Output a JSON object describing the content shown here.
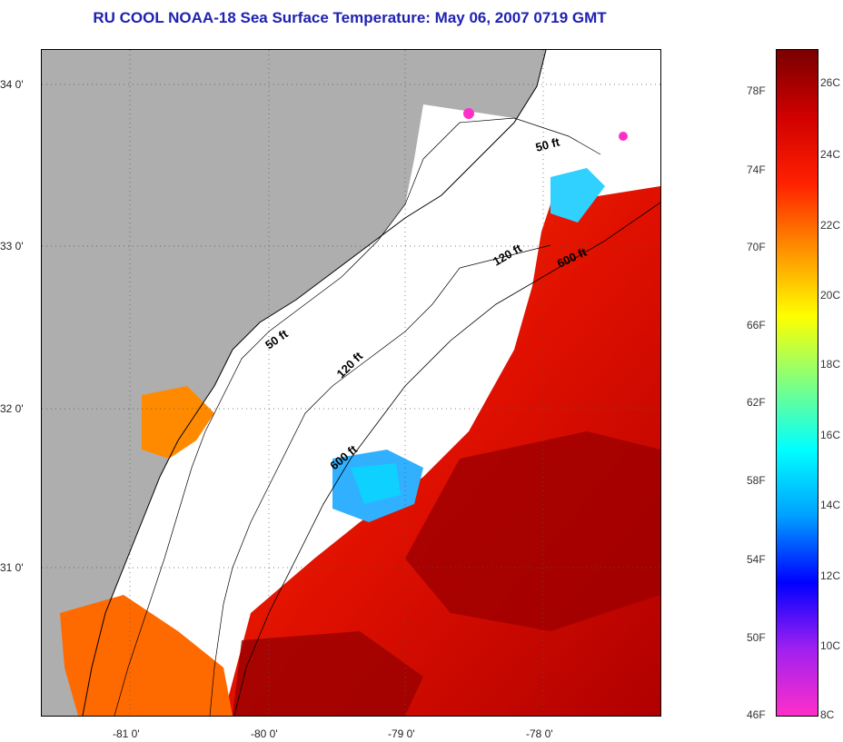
{
  "title": "RU COOL  NOAA-18  Sea Surface Temperature:  May 06, 2007 0719 GMT",
  "map": {
    "lat_labels": [
      "34 0'",
      "33 0'",
      "32 0'",
      "31 0'"
    ],
    "lon_labels": [
      "-81 0'",
      "-80 0'",
      "-79 0'",
      "-78 0'"
    ],
    "contour_labels": [
      "50 ft",
      "50 ft",
      "120 ft",
      "120 ft",
      "600 ft",
      "600 ft"
    ],
    "colors": {
      "land": "#aeaeae",
      "cloud": "#ffffff",
      "coast": "#000000"
    }
  },
  "colorbar": {
    "fahrenheit": [
      "78F",
      "74F",
      "70F",
      "66F",
      "62F",
      "58F",
      "54F",
      "50F",
      "46F"
    ],
    "celsius": [
      "26C",
      "24C",
      "22C",
      "20C",
      "18C",
      "16C",
      "14C",
      "12C",
      "10C",
      "8C"
    ],
    "stops": [
      "#ff2fc8",
      "#a020f0",
      "#0000ff",
      "#00a0ff",
      "#00ffff",
      "#80ff80",
      "#ffff00",
      "#ff9000",
      "#ff2000",
      "#d00000",
      "#7a0000"
    ]
  }
}
